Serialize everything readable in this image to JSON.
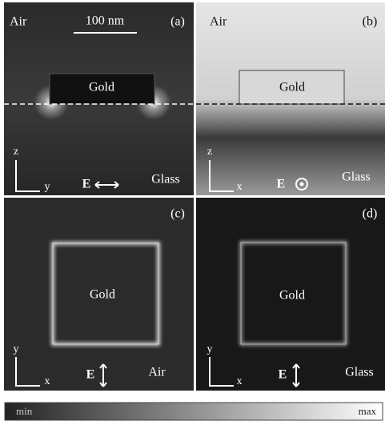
{
  "panels": [
    {
      "label": "(a)",
      "medium_top": "Air",
      "scale_bar": "100 nm",
      "particle": "Gold",
      "axis_vertical": "z",
      "axis_horizontal": "y",
      "field": "E",
      "medium_bottom": "Glass"
    },
    {
      "label": "(b)",
      "medium_top": "Air",
      "particle": "Gold",
      "axis_vertical": "z",
      "axis_horizontal": "x",
      "field": "E",
      "medium_bottom": "Glass"
    },
    {
      "label": "(c)",
      "particle": "Gold",
      "axis_vertical": "y",
      "axis_horizontal": "x",
      "field": "E",
      "medium": "Air"
    },
    {
      "label": "(d)",
      "particle": "Gold",
      "axis_vertical": "y",
      "axis_horizontal": "x",
      "field": "E",
      "medium": "Glass"
    }
  ],
  "colorbar": {
    "min": "min",
    "max": "max"
  }
}
